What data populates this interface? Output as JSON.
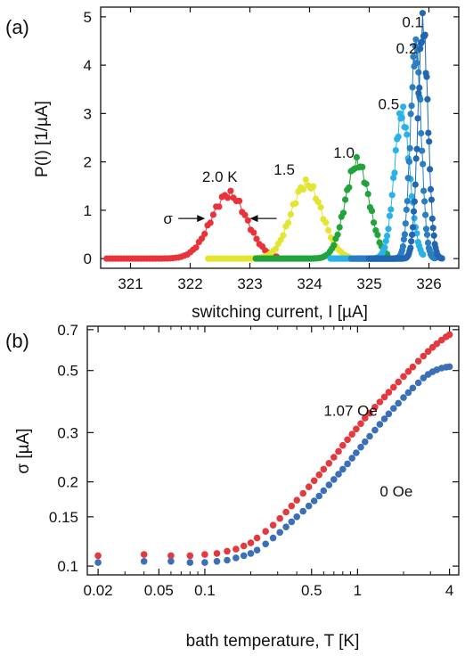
{
  "chart_data": [
    {
      "type": "scatter",
      "panel_label": "(a)",
      "xlabel": "switching current, I [µA]",
      "ylabel": "P(I) [1/µA]",
      "xlim": [
        320.5,
        326.5
      ],
      "ylim": [
        -0.2,
        5.2
      ],
      "xticks": [
        "321",
        "322",
        "323",
        "324",
        "325",
        "326"
      ],
      "yticks": [
        "0",
        "1",
        "2",
        "3",
        "4",
        "5"
      ],
      "grid": false,
      "annotations": [
        {
          "text": "2.0 K",
          "x": 322.2,
          "y": 1.7
        },
        {
          "text": "1.5",
          "x": 323.4,
          "y": 1.85
        },
        {
          "text": "1.0",
          "x": 324.4,
          "y": 2.2
        },
        {
          "text": "0.5",
          "x": 325.15,
          "y": 3.2
        },
        {
          "text": "0.2",
          "x": 325.45,
          "y": 4.35
        },
        {
          "text": "0.1",
          "x": 325.55,
          "y": 4.9
        },
        {
          "text": "σ",
          "x": 321.55,
          "y": 0.83
        }
      ],
      "sigma_arrows": {
        "y": 0.83,
        "left_tip": 322.25,
        "right_tip": 323.0
      },
      "series": [
        {
          "name": "2.0 K",
          "color": "#e8333a",
          "center": 322.65,
          "peak": 1.33,
          "sigma": 0.3,
          "xmin": 320.6,
          "xmax": 323.45
        },
        {
          "name": "1.5",
          "color": "#e4e532",
          "center": 323.95,
          "peak": 1.55,
          "sigma": 0.26,
          "xmin": 322.3,
          "xmax": 324.65
        },
        {
          "name": "1.0",
          "color": "#22a33b",
          "center": 324.8,
          "peak": 1.98,
          "sigma": 0.2,
          "xmin": 323.1,
          "xmax": 325.3
        },
        {
          "name": "0.5",
          "color": "#2ab2e6",
          "center": 325.55,
          "peak": 3.0,
          "sigma": 0.13,
          "xmin": 324.35,
          "xmax": 325.9
        },
        {
          "name": "0.2",
          "color": "#2a7ec2",
          "center": 325.78,
          "peak": 4.38,
          "sigma": 0.09,
          "xmin": 324.7,
          "xmax": 326.1
        },
        {
          "name": "0.1",
          "color": "#2266b0",
          "center": 325.9,
          "peak": 4.8,
          "sigma": 0.085,
          "xmin": 325.0,
          "xmax": 326.22
        }
      ]
    },
    {
      "type": "scatter",
      "panel_label": "(b)",
      "xlabel": "bath temperature, T [K]",
      "ylabel": "σ [µA]",
      "xscale": "log",
      "yscale": "log",
      "xlim": [
        0.017,
        4.6
      ],
      "ylim": [
        0.093,
        0.72
      ],
      "xticks": [
        "0.02",
        "0.05",
        "0.1",
        "0.5",
        "1",
        "4"
      ],
      "xtick_values": [
        0.02,
        0.05,
        0.1,
        0.5,
        1,
        4
      ],
      "yticks": [
        "0.1",
        "0.15",
        "0.2",
        "0.3",
        "0.5",
        "0.7"
      ],
      "ytick_values": [
        0.1,
        0.15,
        0.2,
        0.3,
        0.5,
        0.7
      ],
      "grid": false,
      "annotations": [
        {
          "text": "1.07 Oe",
          "x": 0.6,
          "y": 0.36
        },
        {
          "text": "0 Oe",
          "x": 1.4,
          "y": 0.185
        }
      ],
      "series": [
        {
          "name": "1.07 Oe",
          "color": "#e33a3f",
          "x": [
            0.02,
            0.04,
            0.06,
            0.08,
            0.1,
            0.12,
            0.14,
            0.16,
            0.18,
            0.2,
            0.22,
            0.25,
            0.28,
            0.31,
            0.34,
            0.37,
            0.4,
            0.44,
            0.48,
            0.52,
            0.56,
            0.6,
            0.65,
            0.7,
            0.75,
            0.8,
            0.86,
            0.92,
            0.98,
            1.05,
            1.12,
            1.2,
            1.3,
            1.4,
            1.5,
            1.6,
            1.72,
            1.85,
            2.0,
            2.15,
            2.3,
            2.5,
            2.7,
            2.9,
            3.1,
            3.3,
            3.55,
            3.8,
            4.0
          ],
          "y": [
            0.109,
            0.11,
            0.109,
            0.109,
            0.11,
            0.111,
            0.113,
            0.115,
            0.118,
            0.121,
            0.126,
            0.133,
            0.14,
            0.148,
            0.156,
            0.164,
            0.172,
            0.182,
            0.192,
            0.202,
            0.212,
            0.222,
            0.233,
            0.245,
            0.257,
            0.27,
            0.283,
            0.296,
            0.309,
            0.323,
            0.338,
            0.352,
            0.37,
            0.386,
            0.402,
            0.418,
            0.436,
            0.455,
            0.476,
            0.496,
            0.515,
            0.54,
            0.563,
            0.585,
            0.605,
            0.623,
            0.642,
            0.66,
            0.672
          ]
        },
        {
          "name": "0 Oe",
          "color": "#3b6fb6",
          "x": [
            0.02,
            0.04,
            0.06,
            0.08,
            0.1,
            0.12,
            0.14,
            0.16,
            0.18,
            0.2,
            0.22,
            0.25,
            0.28,
            0.31,
            0.34,
            0.37,
            0.4,
            0.44,
            0.48,
            0.52,
            0.56,
            0.6,
            0.65,
            0.7,
            0.75,
            0.8,
            0.86,
            0.92,
            0.98,
            1.05,
            1.12,
            1.2,
            1.3,
            1.4,
            1.5,
            1.6,
            1.72,
            1.85,
            2.0,
            2.15,
            2.3,
            2.5,
            2.7,
            2.9,
            3.1,
            3.3,
            3.55,
            3.8,
            4.0
          ],
          "y": [
            0.103,
            0.104,
            0.104,
            0.103,
            0.103,
            0.104,
            0.105,
            0.107,
            0.109,
            0.111,
            0.114,
            0.12,
            0.126,
            0.132,
            0.138,
            0.144,
            0.15,
            0.157,
            0.164,
            0.171,
            0.178,
            0.186,
            0.195,
            0.204,
            0.213,
            0.222,
            0.232,
            0.243,
            0.254,
            0.266,
            0.278,
            0.291,
            0.306,
            0.321,
            0.336,
            0.35,
            0.366,
            0.382,
            0.4,
            0.417,
            0.433,
            0.452,
            0.47,
            0.484,
            0.495,
            0.503,
            0.51,
            0.514,
            0.516
          ]
        }
      ]
    }
  ]
}
